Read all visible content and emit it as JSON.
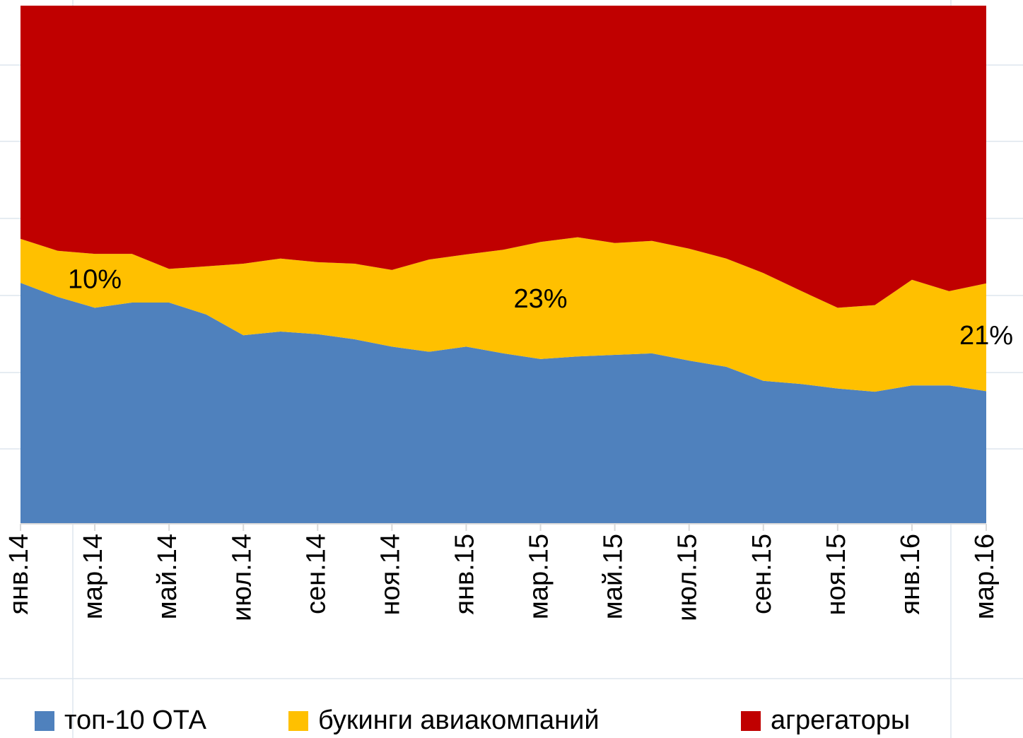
{
  "chart_data": {
    "type": "stacked_area_percent",
    "categories": [
      "янв.14",
      null,
      "мар.14",
      null,
      "май.14",
      null,
      "июл.14",
      null,
      "сен.14",
      null,
      "ноя.14",
      null,
      "янв.15",
      null,
      "мар.15",
      null,
      "май.15",
      null,
      "июл.15",
      null,
      "сен.15",
      null,
      "ноя.15",
      null,
      "янв.16",
      null,
      "мар.16"
    ],
    "ylim": [
      0,
      100
    ],
    "legend": "bottom",
    "series": [
      {
        "name": "топ-10 ОТА",
        "color": "#4f81bd",
        "values": [
          46.5,
          43.8,
          41.7,
          42.7,
          42.7,
          40.4,
          36.4,
          37.1,
          36.6,
          35.6,
          34.2,
          33.2,
          34.2,
          32.9,
          31.8,
          32.3,
          32.6,
          32.9,
          31.5,
          30.3,
          27.6,
          27.0,
          26.1,
          25.5,
          26.7,
          26.7,
          25.6
        ]
      },
      {
        "name": "букинги авиакомпаний",
        "color": "#ffc000",
        "values": [
          8.5,
          8.9,
          10.4,
          9.4,
          6.5,
          9.3,
          13.8,
          14.1,
          13.9,
          14.6,
          14.8,
          17.8,
          17.8,
          20.0,
          22.6,
          23.0,
          21.6,
          21.7,
          21.6,
          20.9,
          20.8,
          18.0,
          15.6,
          16.7,
          20.4,
          18.2,
          20.8
        ],
        "value_labels": [
          null,
          null,
          "10%",
          null,
          null,
          null,
          null,
          null,
          null,
          null,
          null,
          null,
          null,
          null,
          "23%",
          null,
          null,
          null,
          null,
          null,
          null,
          null,
          null,
          null,
          null,
          null,
          "21%"
        ]
      },
      {
        "name": "агрегаторы",
        "color": "#c00000",
        "values": [
          45.0,
          47.3,
          47.9,
          47.9,
          50.8,
          50.3,
          49.8,
          48.8,
          49.5,
          49.8,
          51.0,
          49.0,
          48.0,
          47.1,
          45.6,
          44.7,
          45.8,
          45.4,
          46.9,
          48.8,
          51.6,
          55.0,
          58.3,
          57.8,
          52.9,
          55.1,
          53.6
        ]
      }
    ]
  }
}
